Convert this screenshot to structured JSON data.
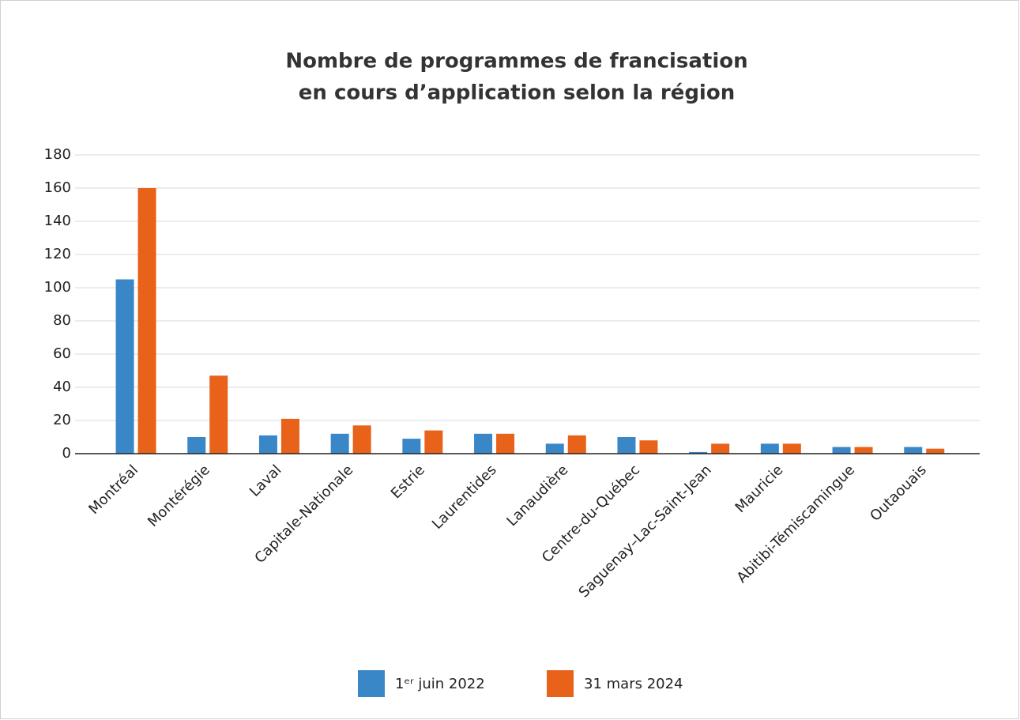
{
  "chart_data": {
    "type": "bar",
    "title": [
      "Nombre de programmes de francisation",
      "en cours d’application selon la région"
    ],
    "categories": [
      "Montréal",
      "Montérégie",
      "Laval",
      "Capitale-Nationale",
      "Estrie",
      "Laurentides",
      "Lanaudière",
      "Centre-du-Québec",
      "Saguenay–Lac-Saint-Jean",
      "Mauricie",
      "Abitibi-Témiscamingue",
      "Outaouais"
    ],
    "series": [
      {
        "name": "1ᵉʳ juin 2022",
        "color": "#3a87c8",
        "values": [
          105,
          10,
          11,
          12,
          9,
          12,
          6,
          10,
          1,
          6,
          4,
          4
        ]
      },
      {
        "name": "31 mars 2024",
        "color": "#e8621a",
        "values": [
          160,
          47,
          21,
          17,
          14,
          12,
          11,
          8,
          6,
          6,
          4,
          3
        ]
      }
    ],
    "ylim": [
      0,
      180
    ],
    "yticks": [
      0,
      20,
      40,
      60,
      80,
      100,
      120,
      140,
      160,
      180
    ],
    "grid": true,
    "legend": "bottom"
  }
}
